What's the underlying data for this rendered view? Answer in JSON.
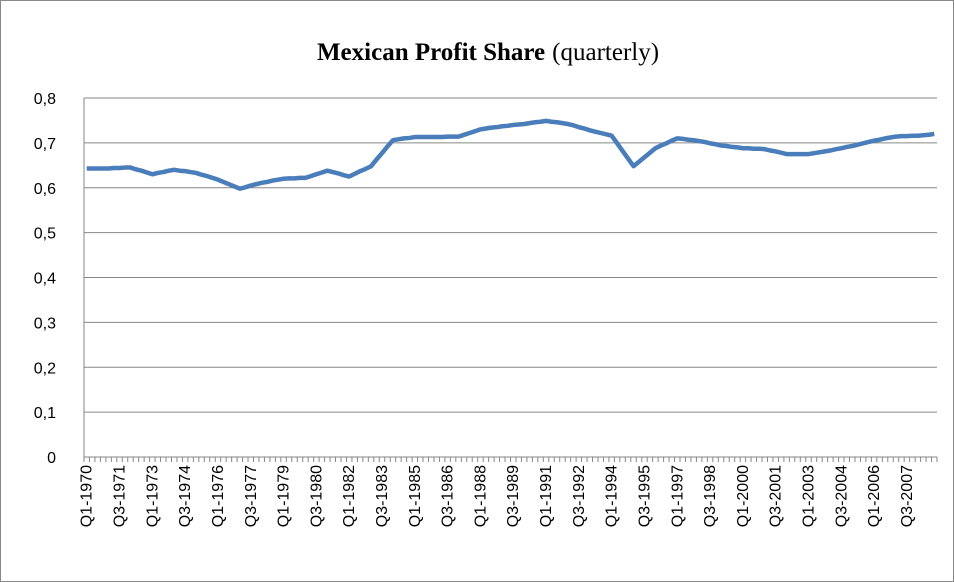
{
  "chart_data": {
    "type": "line",
    "title": "Mexican Profit Share",
    "title_note": "(quarterly)",
    "categories": [
      "Q1-1970",
      null,
      null,
      null,
      null,
      null,
      "Q3-1971",
      null,
      null,
      null,
      null,
      null,
      "Q1-1973",
      null,
      null,
      null,
      null,
      null,
      "Q3-1974",
      null,
      null,
      null,
      null,
      null,
      "Q1-1976",
      null,
      null,
      null,
      null,
      null,
      "Q3-1977",
      null,
      null,
      null,
      null,
      null,
      "Q1-1979",
      null,
      null,
      null,
      null,
      null,
      "Q3-1980",
      null,
      null,
      null,
      null,
      null,
      "Q1-1982",
      null,
      null,
      null,
      null,
      null,
      "Q3-1983",
      null,
      null,
      null,
      null,
      null,
      "Q1-1985",
      null,
      null,
      null,
      null,
      null,
      "Q3-1986",
      null,
      null,
      null,
      null,
      null,
      "Q1-1988",
      null,
      null,
      null,
      null,
      null,
      "Q3-1989",
      null,
      null,
      null,
      null,
      null,
      "Q1-1991",
      null,
      null,
      null,
      null,
      null,
      "Q3-1992",
      null,
      null,
      null,
      null,
      null,
      "Q1-1994",
      null,
      null,
      null,
      null,
      null,
      "Q3-1995",
      null,
      null,
      null,
      null,
      null,
      "Q1-1997",
      null,
      null,
      null,
      null,
      null,
      "Q3-1998",
      null,
      null,
      null,
      null,
      null,
      "Q1-2000",
      null,
      null,
      null,
      null,
      null,
      "Q3-2001",
      null,
      null,
      null,
      null,
      null,
      "Q1-2003",
      null,
      null,
      null,
      null,
      null,
      "Q3-2004",
      null,
      null,
      null,
      null,
      null,
      "Q1-2006",
      null,
      null,
      null,
      null,
      null,
      "Q3-2007",
      null,
      null,
      null,
      null,
      null
    ],
    "values": [
      0.643,
      0.643,
      0.643,
      0.643,
      0.643,
      0.644,
      0.644,
      0.645,
      0.645,
      0.641,
      0.638,
      0.634,
      0.63,
      0.633,
      0.635,
      0.638,
      0.64,
      0.638,
      0.637,
      0.635,
      0.633,
      0.629,
      0.626,
      0.622,
      0.618,
      0.613,
      0.608,
      0.603,
      0.598,
      0.601,
      0.605,
      0.608,
      0.611,
      0.613,
      0.616,
      0.618,
      0.62,
      0.621,
      0.621,
      0.622,
      0.622,
      0.626,
      0.63,
      0.634,
      0.638,
      0.635,
      0.632,
      0.628,
      0.625,
      0.631,
      0.637,
      0.642,
      0.648,
      0.663,
      0.677,
      0.692,
      0.706,
      0.708,
      0.71,
      0.711,
      0.713,
      0.713,
      0.713,
      0.713,
      0.713,
      0.713,
      0.714,
      0.714,
      0.714,
      0.718,
      0.722,
      0.726,
      0.73,
      0.732,
      0.734,
      0.735,
      0.737,
      0.738,
      0.74,
      0.741,
      0.742,
      0.744,
      0.746,
      0.747,
      0.749,
      0.747,
      0.746,
      0.744,
      0.742,
      0.739,
      0.735,
      0.732,
      0.728,
      0.725,
      0.722,
      0.719,
      0.716,
      0.699,
      0.682,
      0.665,
      0.648,
      0.658,
      0.668,
      0.678,
      0.688,
      0.694,
      0.699,
      0.705,
      0.71,
      0.709,
      0.707,
      0.706,
      0.704,
      0.702,
      0.699,
      0.697,
      0.694,
      0.693,
      0.691,
      0.69,
      0.688,
      0.688,
      0.687,
      0.687,
      0.686,
      0.683,
      0.681,
      0.678,
      0.675,
      0.675,
      0.675,
      0.675,
      0.675,
      0.677,
      0.679,
      0.681,
      0.683,
      0.686,
      0.688,
      0.691,
      0.693,
      0.696,
      0.699,
      0.702,
      0.705,
      0.707,
      0.71,
      0.712,
      0.714,
      0.715,
      0.715,
      0.716,
      0.716,
      0.717,
      0.718,
      0.72
    ],
    "color": "#4a7ebb",
    "ylim": [
      0,
      0.8
    ],
    "yticks": [
      0,
      {
        "value": 0.1,
        "label": "0,1"
      },
      {
        "value": 0.2,
        "label": "0,2"
      },
      {
        "value": 0.3,
        "label": "0,3"
      },
      {
        "value": 0.4,
        "label": "0,4"
      },
      {
        "value": 0.5,
        "label": "0,5"
      },
      {
        "value": 0.6,
        "label": "0,6"
      },
      {
        "value": 0.7,
        "label": "0,7"
      },
      {
        "value": 0.8,
        "label": "0,8"
      }
    ],
    "grid": true
  }
}
